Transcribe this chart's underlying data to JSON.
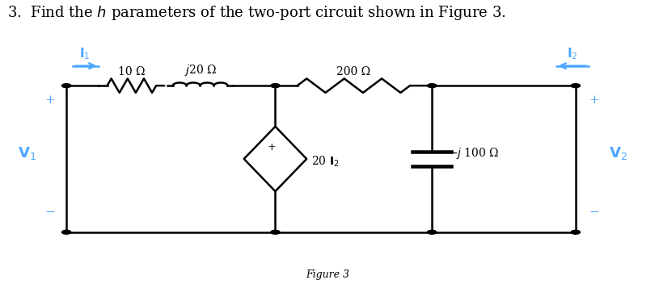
{
  "title": "3.  Find the $h$ parameters of the two-port circuit shown in Figure 3.",
  "title_fontsize": 13,
  "fig_caption": "Figure 3",
  "background_color": "#ffffff",
  "line_color": "#000000",
  "blue_color": "#4da6ff",
  "resistor_10_label": "10 Ω",
  "inductor_label": "$j$20 Ω",
  "resistor_200_label": "200 Ω",
  "capacitor_label": "−$j$ 100 Ω",
  "csource_label": "20 $\\mathbf{I}_2$",
  "I1_label": "$\\mathbf{I}_1$",
  "I2_label": "$\\mathbf{I}_2$",
  "V1_label": "$\\mathbf{V}_1$",
  "V2_label": "$\\mathbf{V}_2$",
  "plus": "+",
  "minus": "−"
}
